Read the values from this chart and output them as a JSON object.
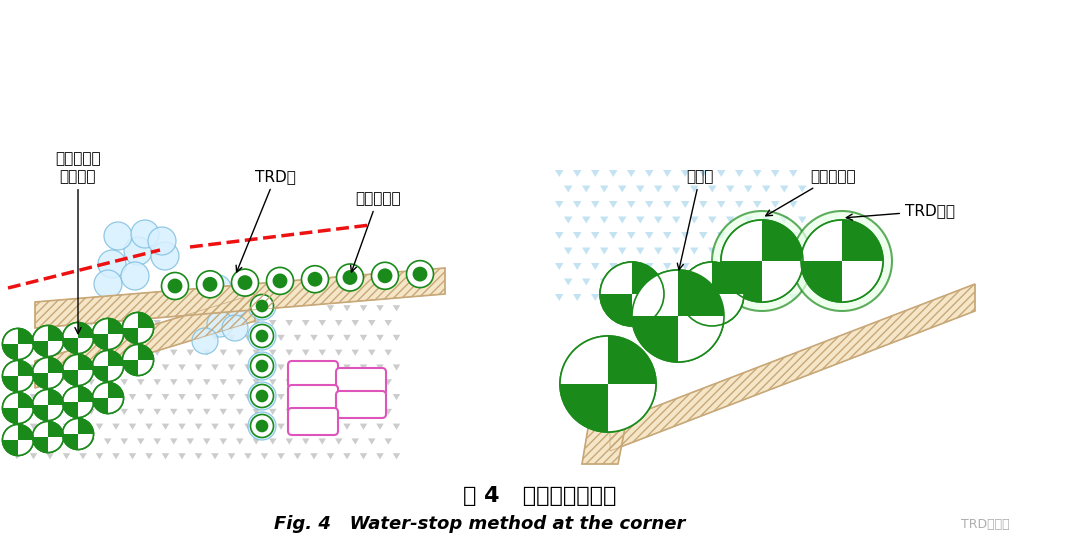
{
  "fig_title_cn": "图 4   转角处止水做法",
  "fig_title_en": "Fig. 4   Water-stop method at the corner",
  "watermark": "TRD工法网",
  "bg_color": "#ffffff",
  "left_labels": {
    "label1": "高压旋喷桩\n加强止水",
    "label2": "TRD墙",
    "label3": "围护钻孔桩"
  },
  "right_labels": {
    "label1": "围护桩",
    "label2": "高压旋喷桩",
    "label3": "TRD止水"
  },
  "colors": {
    "green_dark": "#1a8a1a",
    "green_light": "#90ee90",
    "blue_light": "#b8dff0",
    "blue_circle": "#87ceeb",
    "tan": "#c8a878",
    "tan_light": "#f5e6c8",
    "tan_hatch": "#e8d0a0",
    "red": "#ee1111",
    "pink": "#dd55bb",
    "soil_tri": "#aaaaaa",
    "soil_bg": "#f0f0e0",
    "caption_color": "#111111"
  }
}
